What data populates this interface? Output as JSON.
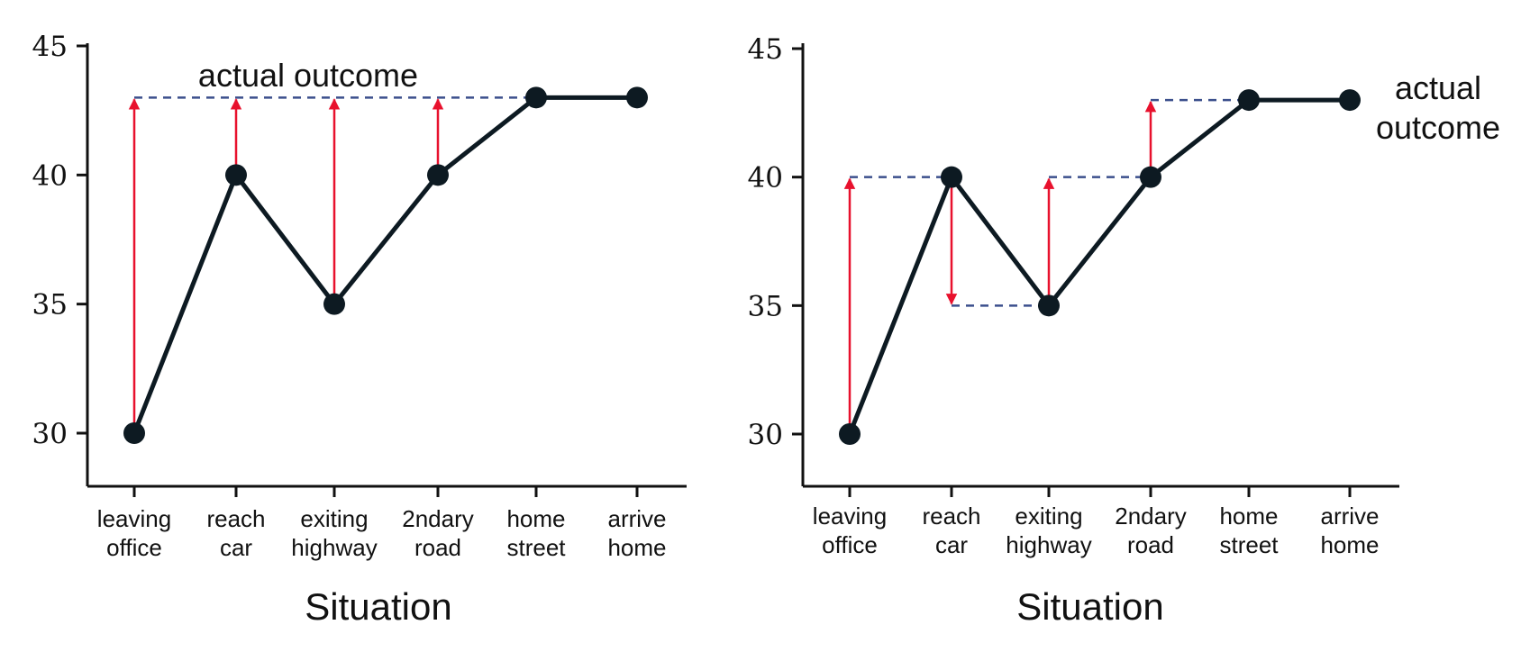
{
  "chart_data": [
    {
      "type": "line",
      "categories": [
        "leaving office",
        "reach car",
        "exiting highway",
        "2ndary road",
        "home street",
        "arrive home"
      ],
      "tick_labels": [
        [
          "leaving",
          "office"
        ],
        [
          "reach",
          "car"
        ],
        [
          "exiting",
          "highway"
        ],
        [
          "2ndary",
          "road"
        ],
        [
          "home",
          "street"
        ],
        [
          "arrive",
          "home"
        ]
      ],
      "values": [
        30,
        40,
        35,
        40,
        43,
        43
      ],
      "xlabel": "Situation",
      "ylabel": "",
      "ylim": [
        28,
        45
      ],
      "yticks": [
        30,
        35,
        40,
        45
      ],
      "actual_outcome": 43,
      "annotation": [
        "actual outcome"
      ],
      "annotation_position": "top",
      "arrows": [
        {
          "at": 0,
          "from": 30,
          "to": 43
        },
        {
          "at": 1,
          "from": 40,
          "to": 43
        },
        {
          "at": 2,
          "from": 35,
          "to": 43
        },
        {
          "at": 3,
          "from": 40,
          "to": 43
        }
      ],
      "dashed_targets": [
        {
          "from_index": 0,
          "to_index": 5,
          "value": 43
        }
      ],
      "grid": false,
      "colors": {
        "line": "#0d1a22",
        "arrow": "#e8112d",
        "dashed": "#3b4f8c"
      }
    },
    {
      "type": "line",
      "categories": [
        "leaving office",
        "reach car",
        "exiting highway",
        "2ndary road",
        "home street",
        "arrive home"
      ],
      "tick_labels": [
        [
          "leaving",
          "office"
        ],
        [
          "reach",
          "car"
        ],
        [
          "exiting",
          "highway"
        ],
        [
          "2ndary",
          "road"
        ],
        [
          "home",
          "street"
        ],
        [
          "arrive",
          "home"
        ]
      ],
      "values": [
        30,
        40,
        35,
        40,
        43,
        43
      ],
      "xlabel": "Situation",
      "ylabel": "",
      "ylim": [
        28,
        45
      ],
      "yticks": [
        30,
        35,
        40,
        45
      ],
      "actual_outcome": 43,
      "annotation": [
        "actual",
        "outcome"
      ],
      "annotation_position": "right",
      "arrows": [
        {
          "at": 0,
          "from": 30,
          "to": 40
        },
        {
          "at": 1,
          "from": 40,
          "to": 35
        },
        {
          "at": 2,
          "from": 35,
          "to": 40
        },
        {
          "at": 3,
          "from": 40,
          "to": 43
        }
      ],
      "dashed_targets": [
        {
          "from_index": 0,
          "to_index": 1,
          "value": 40
        },
        {
          "from_index": 1,
          "to_index": 2,
          "value": 35
        },
        {
          "from_index": 2,
          "to_index": 3,
          "value": 40
        },
        {
          "from_index": 3,
          "to_index": 4,
          "value": 43
        },
        {
          "from_index": 4,
          "to_index": 5,
          "value": 43
        }
      ],
      "grid": false,
      "colors": {
        "line": "#0d1a22",
        "arrow": "#e8112d",
        "dashed": "#3b4f8c"
      }
    }
  ]
}
